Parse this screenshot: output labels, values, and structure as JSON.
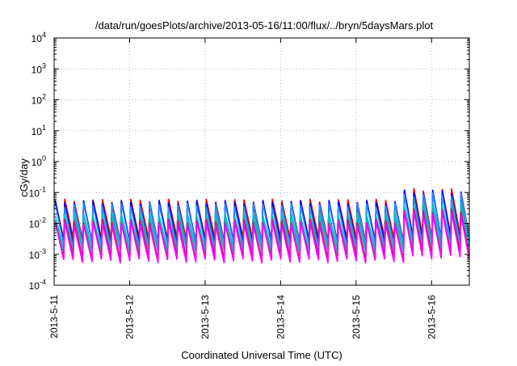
{
  "chart_data": {
    "type": "line",
    "title": "/data/run/goesPlots/archive/2013-05-16/11:00/flux/../bryn/5daysMars.plot",
    "xlabel": "Coordinated Universal Time (UTC)",
    "ylabel": "cGy/day",
    "yscale": "log",
    "ylim": [
      0.0001,
      10000
    ],
    "xlim_days": [
      0,
      5.5
    ],
    "grid": true,
    "y_ticks": [
      {
        "base": "10",
        "exp": "-4"
      },
      {
        "base": "10",
        "exp": "-3"
      },
      {
        "base": "10",
        "exp": "-2"
      },
      {
        "base": "10",
        "exp": "-1"
      },
      {
        "base": "10",
        "exp": "0"
      },
      {
        "base": "10",
        "exp": "1"
      },
      {
        "base": "10",
        "exp": "2"
      },
      {
        "base": "10",
        "exp": "3"
      },
      {
        "base": "10",
        "exp": "4"
      }
    ],
    "x_ticks": [
      "2013-5-11",
      "2013-5-12",
      "2013-5-13",
      "2013-5-14",
      "2013-5-15",
      "2013-5-16"
    ],
    "series_colors": [
      "#ff0000",
      "#8b0000",
      "#0000ff",
      "#1e90ff",
      "#00bcd4",
      "#20b2aa",
      "#c71585",
      "#ff00ff"
    ],
    "cycles_per_day": 8,
    "series_peak": [
      0.055,
      0.045,
      0.05,
      0.04,
      0.02,
      0.015,
      0.012,
      0.01
    ],
    "series_trough": [
      0.003,
      0.0025,
      0.0022,
      0.002,
      0.0015,
      0.0012,
      0.0008,
      0.0006
    ],
    "enhancement_start_day": 4.62,
    "enhancement_factor": 2.2
  }
}
